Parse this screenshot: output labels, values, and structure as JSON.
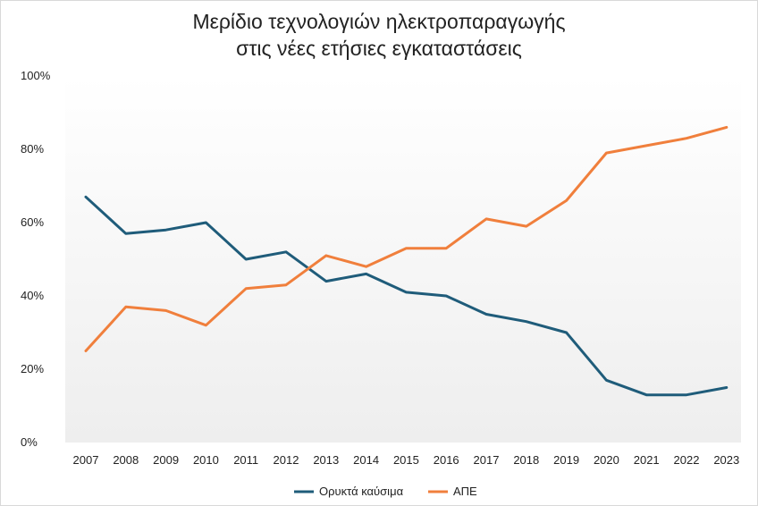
{
  "chart_data": {
    "type": "line",
    "title_lines": [
      "Μερίδιο τεχνολογιών ηλεκτροπαραγωγής",
      "στις νέες ετήσιες εγκαταστάσεις"
    ],
    "xlabel": "",
    "ylabel": "",
    "x": [
      "2007",
      "2008",
      "2009",
      "2010",
      "2011",
      "2012",
      "2013",
      "2014",
      "2015",
      "2016",
      "2017",
      "2018",
      "2019",
      "2020",
      "2021",
      "2022",
      "2023"
    ],
    "ylim": [
      0,
      100
    ],
    "y_ticks": [
      0,
      20,
      40,
      60,
      80,
      100
    ],
    "y_tick_labels": [
      "0%",
      "20%",
      "40%",
      "60%",
      "80%",
      "100%"
    ],
    "grid": false,
    "legend_position": "bottom",
    "series": [
      {
        "name": "Ορυκτά καύσιμα",
        "color": "#1f5c7a",
        "values": [
          67,
          57,
          58,
          60,
          50,
          52,
          44,
          46,
          41,
          40,
          35,
          33,
          30,
          17,
          13,
          13,
          15
        ]
      },
      {
        "name": "ΑΠΕ",
        "color": "#f07f3c",
        "values": [
          25,
          37,
          36,
          32,
          42,
          43,
          51,
          48,
          53,
          53,
          61,
          59,
          66,
          79,
          81,
          83,
          86
        ]
      }
    ]
  }
}
